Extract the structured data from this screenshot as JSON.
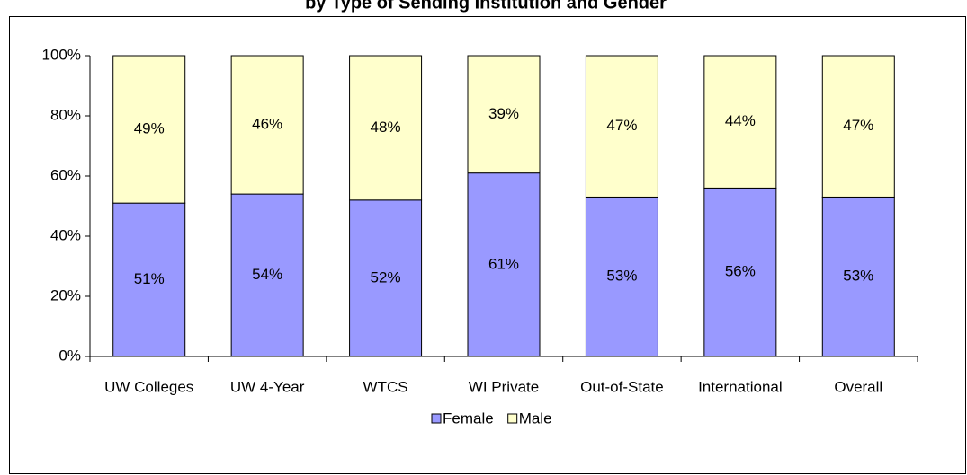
{
  "chart_data": {
    "type": "stacked_bar",
    "title": "by Type of Sending Institution and Gender",
    "categories": [
      "UW Colleges",
      "UW 4-Year",
      "WTCS",
      "WI Private",
      "Out-of-State",
      "International",
      "Overall"
    ],
    "series": [
      {
        "name": "Female",
        "color": "#9999ff",
        "values": [
          51,
          54,
          52,
          61,
          53,
          56,
          53
        ],
        "value_labels": [
          "51%",
          "54%",
          "52%",
          "61%",
          "53%",
          "56%",
          "53%"
        ]
      },
      {
        "name": "Male",
        "color": "#ffffcc",
        "values": [
          49,
          46,
          48,
          39,
          47,
          44,
          47
        ],
        "value_labels": [
          "49%",
          "46%",
          "48%",
          "39%",
          "47%",
          "44%",
          "47%"
        ]
      }
    ],
    "ylim": [
      0,
      100
    ],
    "yticks": [
      {
        "value": 0,
        "label": "0%"
      },
      {
        "value": 20,
        "label": "20%"
      },
      {
        "value": 40,
        "label": "40%"
      },
      {
        "value": 60,
        "label": "60%"
      },
      {
        "value": 80,
        "label": "80%"
      },
      {
        "value": 100,
        "label": "100%"
      }
    ],
    "legend": "bottom"
  }
}
